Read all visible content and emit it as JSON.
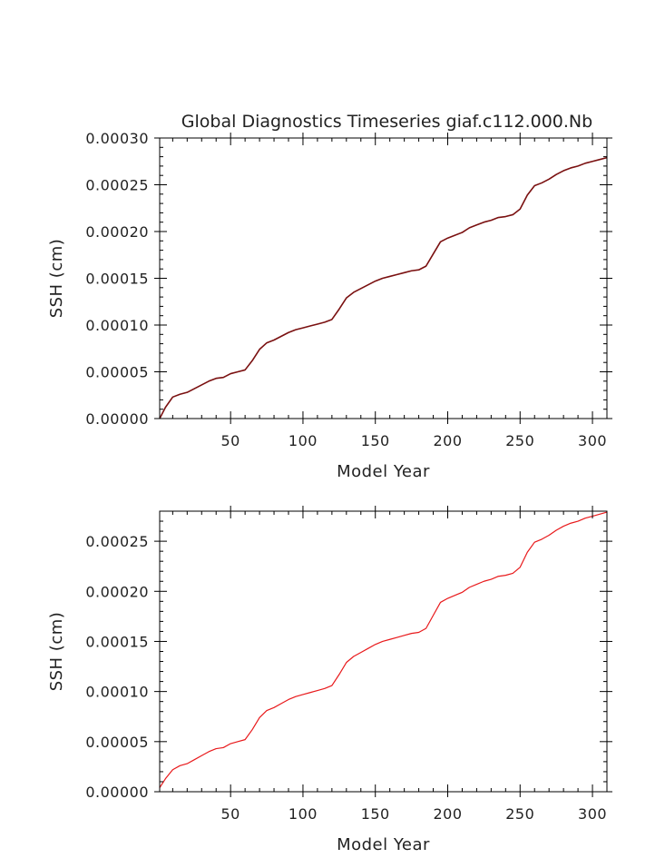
{
  "chart_data": [
    {
      "type": "line",
      "title": "Global Diagnostics Timeseries giaf.c112.000.Nb",
      "xlabel": "Model Year",
      "ylabel": "SSH (cm)",
      "xlim": [
        1,
        310
      ],
      "ylim": [
        0,
        0.0003
      ],
      "x_ticks": [
        50,
        100,
        150,
        200,
        250,
        300
      ],
      "x_tick_labels": [
        "50",
        "100",
        "150",
        "200",
        "250",
        "300"
      ],
      "y_ticks": [
        0,
        5e-05,
        0.0001,
        0.00015,
        0.0002,
        0.00025,
        0.0003
      ],
      "y_tick_labels": [
        "0.00000",
        "0.00005",
        "0.00010",
        "0.00015",
        "0.00020",
        "0.00025",
        "0.00030"
      ],
      "series": [
        {
          "color": "#7a1010",
          "x": [
            1,
            5,
            10,
            15,
            20,
            25,
            30,
            35,
            40,
            45,
            50,
            55,
            60,
            65,
            70,
            75,
            80,
            85,
            90,
            95,
            100,
            105,
            110,
            115,
            120,
            125,
            130,
            135,
            140,
            145,
            150,
            155,
            160,
            165,
            170,
            175,
            180,
            185,
            190,
            195,
            200,
            205,
            210,
            215,
            220,
            225,
            230,
            235,
            240,
            245,
            250,
            255,
            260,
            265,
            270,
            275,
            280,
            285,
            290,
            295,
            300,
            305,
            310
          ],
          "values": [
            0.0,
            1.2e-05,
            2.3e-05,
            2.6e-05,
            2.8e-05,
            3.2e-05,
            3.6e-05,
            4e-05,
            4.3e-05,
            4.4e-05,
            4.8e-05,
            5e-05,
            5.2e-05,
            6.2e-05,
            7.4e-05,
            8.1e-05,
            8.4e-05,
            8.8e-05,
            9.2e-05,
            9.5e-05,
            9.7e-05,
            9.9e-05,
            0.000101,
            0.000103,
            0.000106,
            0.000117,
            0.000129,
            0.000135,
            0.000139,
            0.000143,
            0.000147,
            0.00015,
            0.000152,
            0.000154,
            0.000156,
            0.000158,
            0.000159,
            0.000163,
            0.000176,
            0.000189,
            0.000193,
            0.000196,
            0.000199,
            0.000204,
            0.000207,
            0.00021,
            0.000212,
            0.000215,
            0.000216,
            0.000218,
            0.000224,
            0.000239,
            0.000249,
            0.000252,
            0.000256,
            0.000261,
            0.000265,
            0.000268,
            0.00027,
            0.000273,
            0.000275,
            0.000277,
            0.000279
          ]
        }
      ]
    },
    {
      "type": "line",
      "title": "",
      "xlabel": "Model Year",
      "ylabel": "SSH (cm)",
      "xlim": [
        1,
        310
      ],
      "ylim": [
        0,
        0.00028
      ],
      "x_ticks": [
        50,
        100,
        150,
        200,
        250,
        300
      ],
      "x_tick_labels": [
        "50",
        "100",
        "150",
        "200",
        "250",
        "300"
      ],
      "y_ticks": [
        0,
        5e-05,
        0.0001,
        0.00015,
        0.0002,
        0.00025
      ],
      "y_tick_labels": [
        "0.00000",
        "0.00005",
        "0.00010",
        "0.00015",
        "0.00020",
        "0.00025"
      ],
      "series": [
        {
          "color": "#e8191b",
          "x": [
            1,
            5,
            10,
            15,
            20,
            25,
            30,
            35,
            40,
            45,
            50,
            55,
            60,
            65,
            70,
            75,
            80,
            85,
            90,
            95,
            100,
            105,
            110,
            115,
            120,
            125,
            130,
            135,
            140,
            145,
            150,
            155,
            160,
            165,
            170,
            175,
            180,
            185,
            190,
            195,
            200,
            205,
            210,
            215,
            220,
            225,
            230,
            235,
            240,
            245,
            250,
            255,
            260,
            265,
            270,
            275,
            280,
            285,
            290,
            295,
            300,
            305,
            310
          ],
          "values": [
            4e-06,
            1.3e-05,
            2.2e-05,
            2.6e-05,
            2.8e-05,
            3.2e-05,
            3.6e-05,
            4e-05,
            4.3e-05,
            4.4e-05,
            4.8e-05,
            5e-05,
            5.2e-05,
            6.2e-05,
            7.4e-05,
            8.1e-05,
            8.4e-05,
            8.8e-05,
            9.2e-05,
            9.5e-05,
            9.7e-05,
            9.9e-05,
            0.000101,
            0.000103,
            0.000106,
            0.000117,
            0.000129,
            0.000135,
            0.000139,
            0.000143,
            0.000147,
            0.00015,
            0.000152,
            0.000154,
            0.000156,
            0.000158,
            0.000159,
            0.000163,
            0.000176,
            0.000189,
            0.000193,
            0.000196,
            0.000199,
            0.000204,
            0.000207,
            0.00021,
            0.000212,
            0.000215,
            0.000216,
            0.000218,
            0.000224,
            0.000239,
            0.000249,
            0.000252,
            0.000256,
            0.000261,
            0.000265,
            0.000268,
            0.00027,
            0.000273,
            0.000275,
            0.000277,
            0.000279
          ]
        }
      ]
    }
  ]
}
